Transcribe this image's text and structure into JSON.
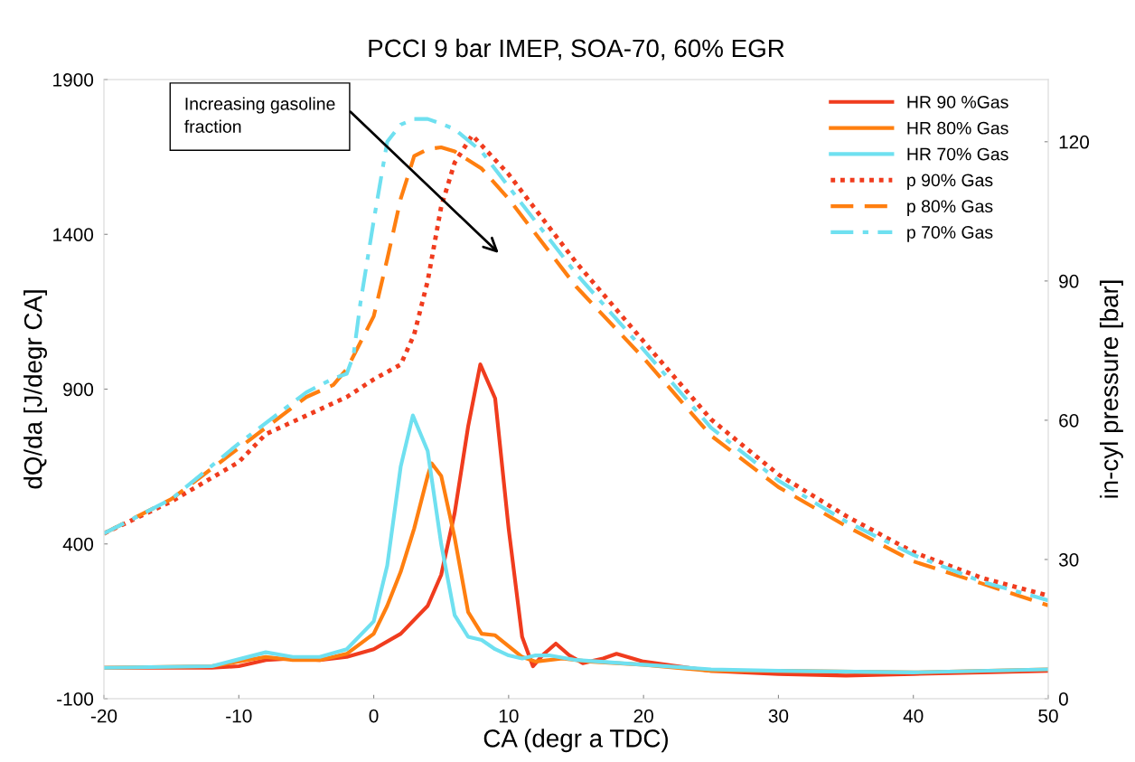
{
  "chart_data": {
    "type": "line",
    "title": "PCCI 9 bar IMEP, SOA-70, 60% EGR",
    "xlabel": "CA (degr a TDC)",
    "ylabel": "dQ/da [J/degr CA]",
    "y2label": "in-cyl pressure [bar]",
    "xlim": [
      -20,
      50
    ],
    "xticks": [
      -20,
      -10,
      0,
      10,
      20,
      30,
      40,
      50
    ],
    "ylim": [
      -100,
      1900
    ],
    "yticks": [
      -100,
      400,
      900,
      1400,
      1900
    ],
    "y2lim": [
      0,
      133.4
    ],
    "y2ticks": [
      0,
      30,
      60,
      90,
      120
    ],
    "grid": false,
    "legend": "top right",
    "annotations": [
      "Increasing gasoline\nfraction"
    ],
    "series": [
      {
        "name": "HR 90 %Gas",
        "color": "#f03c1e",
        "line_style": "solid",
        "x": [
          -20,
          -12,
          -10,
          -8,
          -6,
          -4,
          -2,
          0,
          2,
          4,
          5,
          6,
          7,
          7.9,
          9,
          10,
          11,
          11.8,
          12.5,
          13.5,
          14.5,
          15.5,
          17,
          18,
          20,
          25,
          30,
          35,
          40,
          45,
          50
        ],
        "values": [
          0,
          0,
          5,
          25,
          30,
          25,
          35,
          60,
          110,
          200,
          300,
          500,
          780,
          980,
          870,
          450,
          100,
          5,
          40,
          78,
          40,
          15,
          30,
          45,
          20,
          -10,
          -20,
          -25,
          -20,
          -15,
          -10
        ]
      },
      {
        "name": "HR 80% Gas",
        "color": "#ff7f10",
        "line_style": "solid",
        "x": [
          -20,
          -12,
          -8,
          -6,
          -4,
          -2,
          0,
          1,
          2,
          3,
          4,
          4.3,
          5,
          6,
          7,
          8,
          9,
          10,
          11,
          12,
          14,
          16,
          20,
          25,
          30,
          40,
          50
        ],
        "values": [
          0,
          5,
          35,
          25,
          25,
          45,
          110,
          200,
          310,
          450,
          620,
          660,
          620,
          420,
          180,
          110,
          105,
          70,
          35,
          20,
          30,
          20,
          10,
          -10,
          -10,
          -15,
          -5
        ]
      },
      {
        "name": "HR 70% Gas",
        "color": "#6fe0f0",
        "line_style": "solid",
        "x": [
          -20,
          -12,
          -8,
          -6,
          -4,
          -2,
          0,
          1,
          2,
          2.9,
          4,
          5,
          6,
          7,
          8,
          9,
          10,
          11,
          12,
          13,
          15,
          20,
          25,
          30,
          40,
          50
        ],
        "values": [
          0,
          5,
          50,
          35,
          35,
          60,
          150,
          330,
          650,
          815,
          700,
          400,
          170,
          100,
          90,
          60,
          40,
          30,
          40,
          40,
          25,
          10,
          -5,
          -10,
          -15,
          -5
        ]
      },
      {
        "name": "p 90% Gas",
        "color": "#f03c1e",
        "line_style": "dotted",
        "axis": "y2",
        "x": [
          -20,
          -15,
          -10,
          -8,
          -5,
          -2,
          0,
          2,
          3,
          4,
          5,
          6,
          7.3,
          10,
          15,
          20,
          25,
          30,
          35,
          40,
          45,
          50
        ],
        "values": [
          35.6,
          42.5,
          51,
          57,
          61,
          65,
          68.8,
          72,
          78.5,
          90,
          106,
          115.5,
          121.4,
          113,
          94,
          77,
          60.2,
          48.3,
          39.4,
          31.6,
          26.1,
          22.2
        ]
      },
      {
        "name": "p 80% Gas",
        "color": "#ff7f10",
        "line_style": "dashed",
        "axis": "y2",
        "x": [
          -20,
          -15,
          -10,
          -5,
          -3,
          -2,
          0,
          1,
          2,
          3,
          4,
          5,
          6,
          8,
          10,
          15,
          20,
          25,
          30,
          35,
          40,
          45,
          50
        ],
        "values": [
          35.6,
          43,
          54,
          65,
          67.6,
          71,
          82.4,
          94.7,
          107.7,
          116.9,
          118.4,
          118.8,
          117.9,
          114.2,
          107.7,
          88.8,
          73.4,
          56.7,
          45.6,
          37.2,
          29.6,
          24.9,
          20.1
        ]
      },
      {
        "name": "p 70% Gas",
        "color": "#6fe0f0",
        "line_style": "dashdot",
        "axis": "y2",
        "x": [
          -20,
          -15,
          -10,
          -5,
          -3,
          -2,
          -1.5,
          -1,
          0,
          1,
          2,
          3,
          4,
          5,
          6,
          8,
          10,
          15,
          20,
          25,
          30,
          35,
          40,
          45,
          50
        ],
        "values": [
          35.6,
          43,
          55,
          66,
          69,
          70,
          74,
          85,
          103,
          120,
          123.7,
          124.9,
          124.9,
          123.9,
          122.7,
          117.9,
          110.3,
          91.6,
          75.2,
          58.4,
          47,
          38.2,
          31,
          25.3,
          21.2
        ]
      }
    ]
  }
}
